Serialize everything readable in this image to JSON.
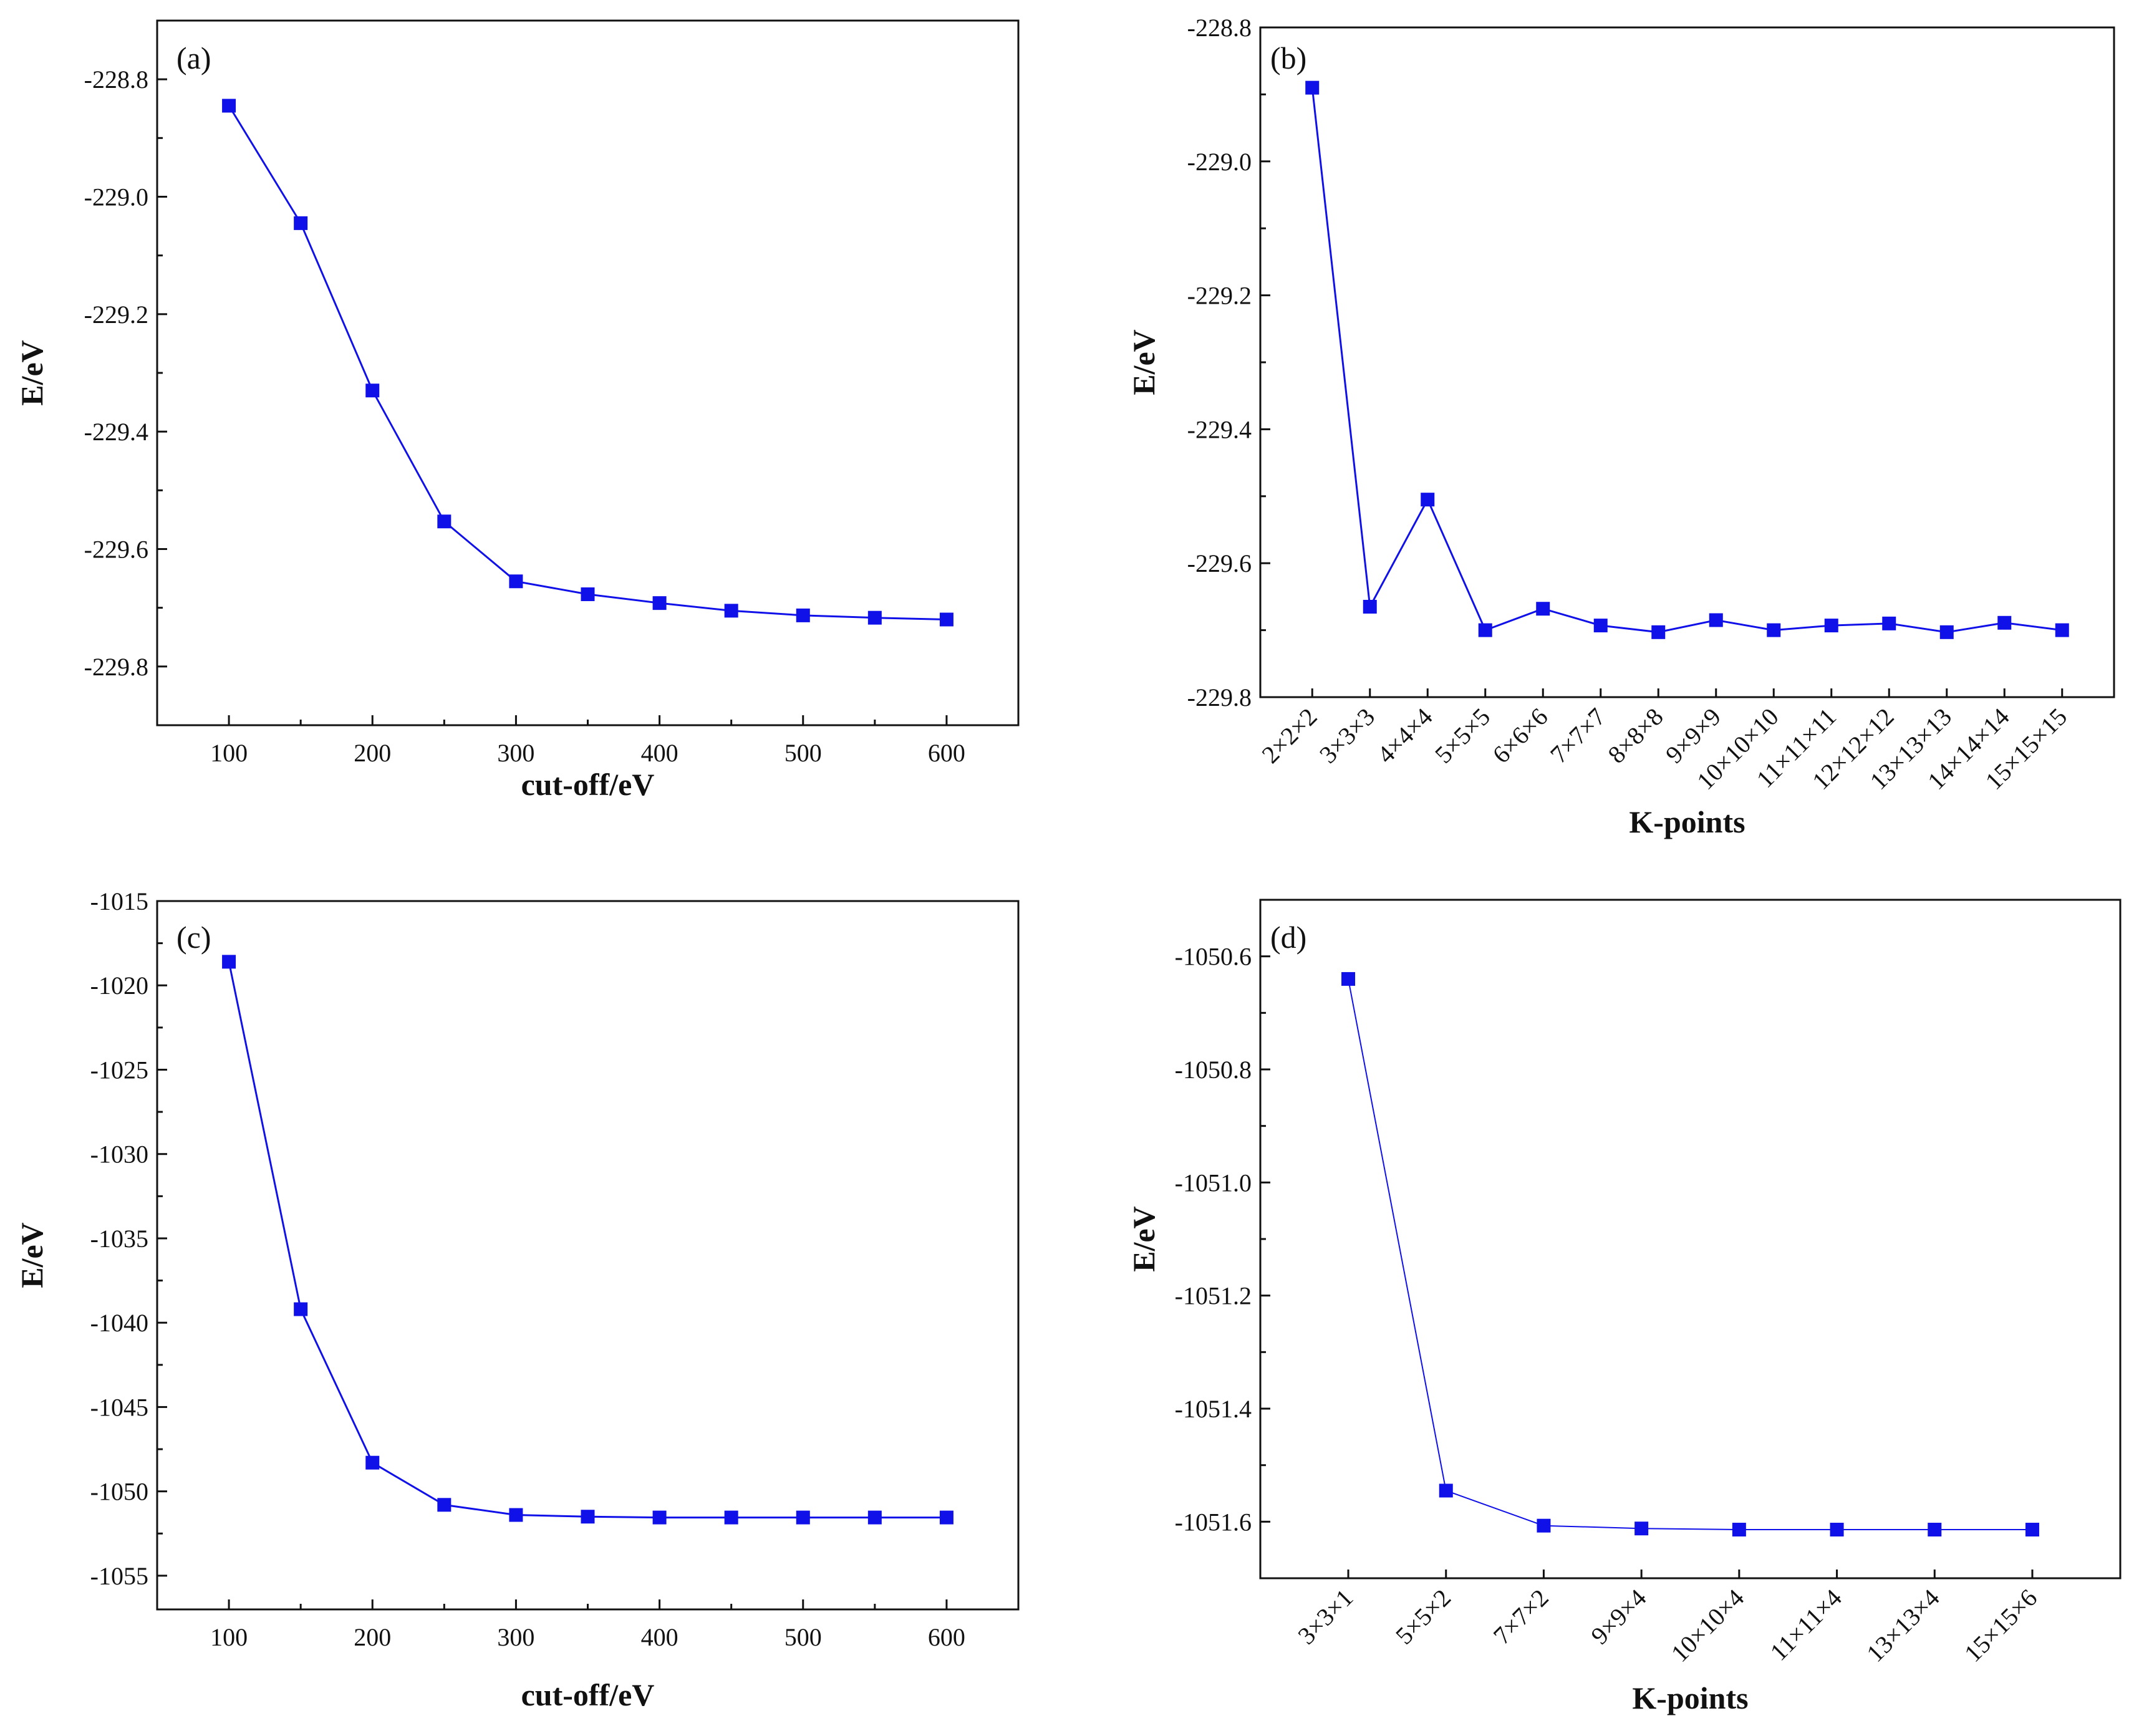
{
  "colors": {
    "series": "#1010e8",
    "marker": "#1010e8",
    "axis": "#111111"
  },
  "chart_data": [
    {
      "type": "line",
      "panel": "(a)",
      "xlabel": "cut-off/eV",
      "ylabel": "E/eV",
      "x": [
        100,
        150,
        200,
        250,
        300,
        350,
        400,
        450,
        500,
        550,
        600
      ],
      "values": [
        -228.845,
        -229.045,
        -229.33,
        -229.553,
        -229.655,
        -229.677,
        -229.692,
        -229.705,
        -229.713,
        -229.717,
        -229.72
      ],
      "xlim": [
        50,
        650
      ],
      "ylim": [
        -229.9,
        -228.7
      ],
      "xticks": [
        100,
        200,
        300,
        400,
        500,
        600
      ],
      "xtick_labels": [
        "100",
        "200",
        "300",
        "400",
        "500",
        "600"
      ],
      "yticks": [
        -228.8,
        -229.0,
        -229.2,
        -229.4,
        -229.6,
        -229.8
      ],
      "ytick_labels": [
        "-228.8",
        "-229.0",
        "-229.2",
        "-229.4",
        "-229.6",
        "-229.8"
      ],
      "yminor": true,
      "xminor": true
    },
    {
      "type": "line",
      "panel": "(b)",
      "xlabel": "K-points",
      "ylabel": "E/eV",
      "categories": [
        "2×2×2",
        "3×3×3",
        "4×4×4",
        "5×5×5",
        "6×6×6",
        "7×7×7",
        "8×8×8",
        "9×9×9",
        "10×10×10",
        "11×11×11",
        "12×12×12",
        "13×13×13",
        "14×14×14",
        "15×15×15"
      ],
      "values": [
        -228.89,
        -229.665,
        -229.505,
        -229.7,
        -229.668,
        -229.693,
        -229.703,
        -229.685,
        -229.7,
        -229.693,
        -229.69,
        -229.703,
        -229.689,
        -229.7
      ],
      "ylim": [
        -229.8,
        -228.8
      ],
      "yticks": [
        -228.8,
        -229.0,
        -229.2,
        -229.4,
        -229.6,
        -229.8
      ],
      "ytick_labels": [
        "-228.8",
        "-229.0",
        "-229.2",
        "-229.4",
        "-229.6",
        "-229.8"
      ],
      "yminor": true
    },
    {
      "type": "line",
      "panel": "(c)",
      "xlabel": "cut-off/eV",
      "ylabel": "E/eV",
      "x": [
        100,
        150,
        200,
        250,
        300,
        350,
        400,
        450,
        500,
        550,
        600
      ],
      "values": [
        -1018.6,
        -1039.2,
        -1048.3,
        -1050.8,
        -1051.4,
        -1051.5,
        -1051.55,
        -1051.55,
        -1051.55,
        -1051.55,
        -1051.55
      ],
      "xlim": [
        50,
        650
      ],
      "ylim": [
        -1057,
        -1015
      ],
      "xticks": [
        100,
        200,
        300,
        400,
        500,
        600
      ],
      "xtick_labels": [
        "100",
        "200",
        "300",
        "400",
        "500",
        "600"
      ],
      "yticks": [
        -1015,
        -1020,
        -1025,
        -1030,
        -1035,
        -1040,
        -1045,
        -1050,
        -1055
      ],
      "ytick_labels": [
        "-1015",
        "-1020",
        "-1025",
        "-1030",
        "-1035",
        "-1040",
        "-1045",
        "-1050",
        "-1055"
      ],
      "yminor": true,
      "xminor": true
    },
    {
      "type": "line",
      "panel": "(d)",
      "xlabel": "K-points",
      "ylabel": "E/eV",
      "categories": [
        "3×3×1",
        "5×5×2",
        "7×7×2",
        "9×9×4",
        "10×10×4",
        "11×11×4",
        "13×13×4",
        "15×15×6"
      ],
      "values": [
        -1050.64,
        -1051.545,
        -1051.607,
        -1051.612,
        -1051.614,
        -1051.614,
        -1051.614,
        -1051.614
      ],
      "ylim": [
        -1051.7,
        -1050.5
      ],
      "yticks": [
        -1050.6,
        -1050.8,
        -1051.0,
        -1051.2,
        -1051.4,
        -1051.6
      ],
      "ytick_labels": [
        "-1050.6",
        "-1050.8",
        "-1051.0",
        "-1051.2",
        "-1051.4",
        "-1051.6"
      ],
      "yminor": true
    }
  ]
}
